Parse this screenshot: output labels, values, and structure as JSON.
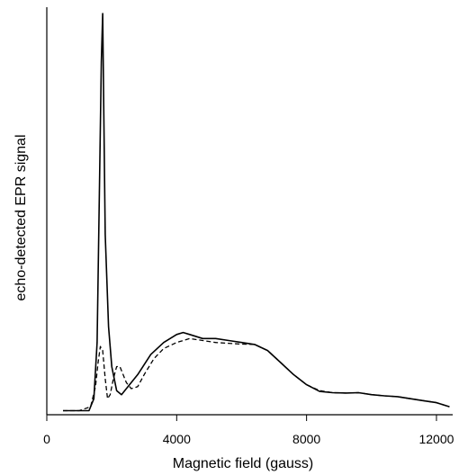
{
  "chart_data": {
    "type": "line",
    "xlabel": "Magnetic field (gauss)",
    "ylabel": "echo-detected EPR signal",
    "xlim": [
      0,
      12500
    ],
    "ylim": [
      0,
      1.0
    ],
    "x_ticks": [
      0,
      4000,
      8000,
      12000
    ],
    "x_tick_labels": [
      "0",
      "4000",
      "8000",
      "12000"
    ],
    "y_ticks_shown": false,
    "grid": false,
    "legend": "none",
    "series": [
      {
        "style": "solid",
        "x": [
          500,
          1000,
          1300,
          1450,
          1550,
          1620,
          1680,
          1720,
          1750,
          1800,
          1900,
          2000,
          2150,
          2300,
          2500,
          2800,
          3200,
          3600,
          4000,
          4200,
          4400,
          4800,
          5200,
          5600,
          6000,
          6400,
          6800,
          7200,
          7600,
          8000,
          8400,
          8800,
          9200,
          9600,
          10000,
          10400,
          10800,
          11200,
          11600,
          12000,
          12400
        ],
        "y": [
          0.01,
          0.01,
          0.01,
          0.04,
          0.18,
          0.55,
          0.88,
          1.0,
          0.8,
          0.45,
          0.22,
          0.12,
          0.06,
          0.05,
          0.07,
          0.1,
          0.15,
          0.18,
          0.2,
          0.205,
          0.2,
          0.19,
          0.19,
          0.185,
          0.18,
          0.175,
          0.16,
          0.13,
          0.1,
          0.075,
          0.058,
          0.055,
          0.054,
          0.055,
          0.05,
          0.047,
          0.045,
          0.04,
          0.035,
          0.03,
          0.02
        ]
      },
      {
        "style": "dashed",
        "x": [
          500,
          1000,
          1350,
          1500,
          1580,
          1650,
          1720,
          1800,
          1870,
          1950,
          2050,
          2150,
          2250,
          2350,
          2450,
          2600,
          2800,
          3000,
          3300,
          3600,
          4000,
          4400,
          4800,
          5200,
          5600,
          6000,
          6400,
          6800,
          7200,
          7600,
          8000,
          8400,
          8800,
          9200,
          9600,
          10000,
          10400,
          10800,
          11200,
          11600,
          12000,
          12400
        ],
        "y": [
          0.01,
          0.01,
          0.02,
          0.07,
          0.13,
          0.17,
          0.16,
          0.09,
          0.04,
          0.05,
          0.09,
          0.12,
          0.12,
          0.1,
          0.08,
          0.065,
          0.07,
          0.1,
          0.14,
          0.165,
          0.18,
          0.19,
          0.185,
          0.18,
          0.178,
          0.176,
          0.175,
          0.16,
          0.13,
          0.1,
          0.075,
          0.06,
          0.055,
          0.054,
          0.055,
          0.05,
          0.047,
          0.045,
          0.04,
          0.035,
          0.03,
          0.02
        ]
      }
    ]
  }
}
